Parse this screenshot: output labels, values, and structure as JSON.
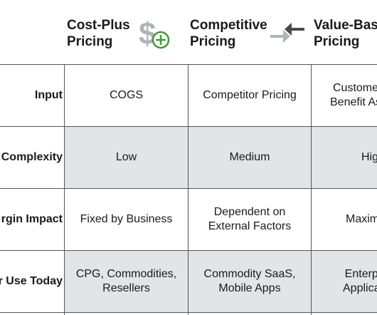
{
  "header": {
    "columns": [
      {
        "line1": "Cost-Plus",
        "line2": "Pricing",
        "icon": "dollar-plus-icon"
      },
      {
        "line1": "Competitive",
        "line2": "Pricing",
        "icon": "arrows-converge-icon"
      },
      {
        "line1": "Value-Bas",
        "line2": "Pricing",
        "icon": ""
      }
    ]
  },
  "rows": [
    {
      "label": "Input",
      "cells": [
        "COGS",
        "Competitor Pricing",
        "Custome\nBenefit As"
      ]
    },
    {
      "label": "Complexity",
      "cells": [
        "Low",
        "Medium",
        "Hig"
      ]
    },
    {
      "label": "rgin Impact",
      "cells": [
        "Fixed by Business",
        "Dependent on\nExternal Factors",
        "Maxim"
      ]
    },
    {
      "label": "r Use Today",
      "cells": [
        "CPG, Commodities,\nResellers",
        "Commodity SaaS,\nMobile Apps",
        "Enterp\nApplica"
      ]
    }
  ],
  "colors": {
    "band": "#e2e4e8",
    "icon_gray": "#b0b3b8",
    "icon_green": "#3f9a3a",
    "line": "#555555"
  }
}
